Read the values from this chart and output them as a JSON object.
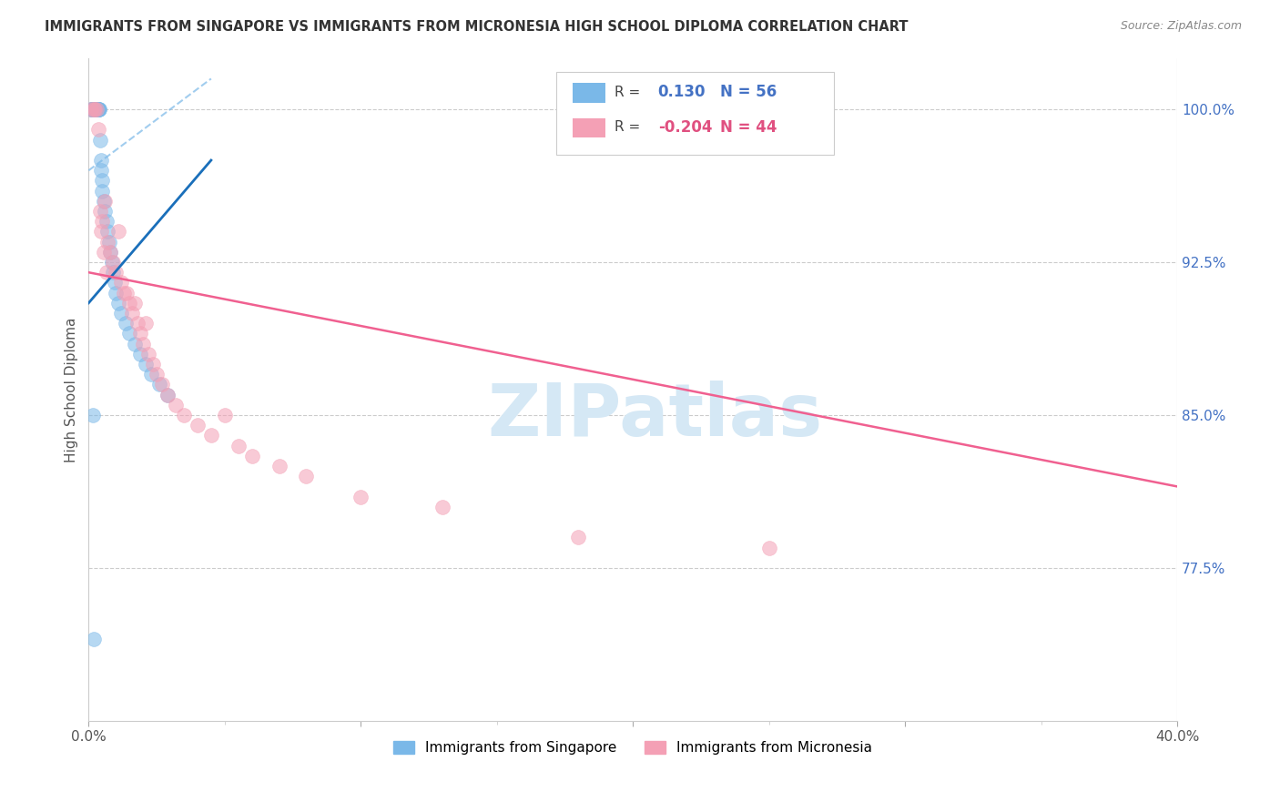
{
  "title": "IMMIGRANTS FROM SINGAPORE VS IMMIGRANTS FROM MICRONESIA HIGH SCHOOL DIPLOMA CORRELATION CHART",
  "source": "Source: ZipAtlas.com",
  "ylabel": "High School Diploma",
  "y_ticks": [
    100.0,
    92.5,
    85.0,
    77.5
  ],
  "xlim": [
    0.0,
    40.0
  ],
  "ylim": [
    70.0,
    102.5
  ],
  "singapore_color": "#7ab8e8",
  "micronesia_color": "#f4a0b5",
  "singapore_line_color": "#1a6fba",
  "singapore_ci_color": "#7ab8e8",
  "micronesia_line_color": "#f06090",
  "watermark": "ZIPatlas",
  "watermark_color": "#d5e8f5",
  "legend_r1_val": "0.130",
  "legend_n1": "N = 56",
  "legend_r2_val": "-0.204",
  "legend_n2": "N = 44",
  "legend_color_sg": "#4472C4",
  "legend_color_mc": "#e05080",
  "sg_x": [
    0.08,
    0.1,
    0.12,
    0.14,
    0.15,
    0.16,
    0.17,
    0.18,
    0.19,
    0.2,
    0.2,
    0.21,
    0.22,
    0.23,
    0.24,
    0.25,
    0.26,
    0.27,
    0.28,
    0.29,
    0.3,
    0.31,
    0.32,
    0.33,
    0.34,
    0.35,
    0.36,
    0.38,
    0.4,
    0.42,
    0.44,
    0.46,
    0.48,
    0.5,
    0.55,
    0.6,
    0.65,
    0.7,
    0.75,
    0.8,
    0.85,
    0.9,
    0.95,
    1.0,
    1.1,
    1.2,
    1.35,
    1.5,
    1.7,
    1.9,
    2.1,
    2.3,
    2.6,
    2.9,
    0.15,
    0.2
  ],
  "sg_y": [
    100.0,
    100.0,
    100.0,
    100.0,
    100.0,
    100.0,
    100.0,
    100.0,
    100.0,
    100.0,
    100.0,
    100.0,
    100.0,
    100.0,
    100.0,
    100.0,
    100.0,
    100.0,
    100.0,
    100.0,
    100.0,
    100.0,
    100.0,
    100.0,
    100.0,
    100.0,
    100.0,
    100.0,
    100.0,
    98.5,
    97.5,
    97.0,
    96.5,
    96.0,
    95.5,
    95.0,
    94.5,
    94.0,
    93.5,
    93.0,
    92.5,
    92.0,
    91.5,
    91.0,
    90.5,
    90.0,
    89.5,
    89.0,
    88.5,
    88.0,
    87.5,
    87.0,
    86.5,
    86.0,
    85.0,
    74.0
  ],
  "mc_x": [
    0.1,
    0.18,
    0.22,
    0.28,
    0.35,
    0.42,
    0.5,
    0.6,
    0.7,
    0.8,
    0.9,
    1.0,
    1.1,
    1.2,
    1.3,
    1.4,
    1.5,
    1.6,
    1.7,
    1.8,
    1.9,
    2.0,
    2.1,
    2.2,
    2.35,
    2.5,
    2.7,
    2.9,
    3.2,
    3.5,
    4.0,
    4.5,
    5.0,
    5.5,
    6.0,
    7.0,
    8.0,
    10.0,
    13.0,
    18.0,
    25.0,
    0.55,
    0.65,
    0.45
  ],
  "mc_y": [
    100.0,
    100.0,
    100.0,
    100.0,
    99.0,
    95.0,
    94.5,
    95.5,
    93.5,
    93.0,
    92.5,
    92.0,
    94.0,
    91.5,
    91.0,
    91.0,
    90.5,
    90.0,
    90.5,
    89.5,
    89.0,
    88.5,
    89.5,
    88.0,
    87.5,
    87.0,
    86.5,
    86.0,
    85.5,
    85.0,
    84.5,
    84.0,
    85.0,
    83.5,
    83.0,
    82.5,
    82.0,
    81.0,
    80.5,
    79.0,
    78.5,
    93.0,
    92.0,
    94.0
  ],
  "sg_line_x0": 0.0,
  "sg_line_x1": 4.5,
  "sg_line_y0": 90.5,
  "sg_line_y1": 97.5,
  "sg_ci_x0": 0.0,
  "sg_ci_x1": 4.5,
  "sg_ci_y0": 97.0,
  "sg_ci_y1": 101.5,
  "mc_line_x0": 0.0,
  "mc_line_x1": 40.0,
  "mc_line_y0": 92.0,
  "mc_line_y1": 81.5
}
